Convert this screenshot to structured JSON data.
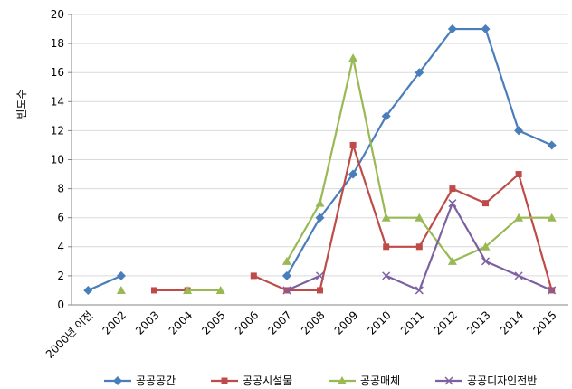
{
  "chart_data": {
    "type": "line",
    "y_label": "빈도수",
    "categories": [
      "2000년 이전",
      "2002",
      "2003",
      "2004",
      "2005",
      "2006",
      "2007",
      "2008",
      "2009",
      "2010",
      "2011",
      "2012",
      "2013",
      "2014",
      "2015"
    ],
    "series": [
      {
        "name": "공공공간",
        "color": "#4a7ebb",
        "marker": "diamond",
        "values": [
          1,
          2,
          null,
          null,
          null,
          null,
          2,
          6,
          9,
          13,
          16,
          19,
          19,
          12,
          11
        ]
      },
      {
        "name": "공공시설물",
        "color": "#be4b48",
        "marker": "square",
        "values": [
          null,
          null,
          1,
          1,
          null,
          2,
          1,
          1,
          11,
          4,
          4,
          8,
          7,
          9,
          1
        ]
      },
      {
        "name": "공공매체",
        "color": "#98b954",
        "marker": "triangle",
        "values": [
          null,
          1,
          null,
          1,
          1,
          null,
          3,
          7,
          17,
          6,
          6,
          3,
          4,
          6,
          6
        ]
      },
      {
        "name": "공공디자인전반",
        "color": "#7d60a0",
        "marker": "x",
        "values": [
          null,
          null,
          null,
          null,
          null,
          null,
          1,
          2,
          null,
          2,
          1,
          7,
          3,
          2,
          1
        ]
      }
    ],
    "ylim": [
      0,
      20
    ],
    "yticks": [
      0,
      2,
      4,
      6,
      8,
      10,
      12,
      14,
      16,
      18,
      20
    ],
    "grid": true,
    "legend": "bottom"
  }
}
